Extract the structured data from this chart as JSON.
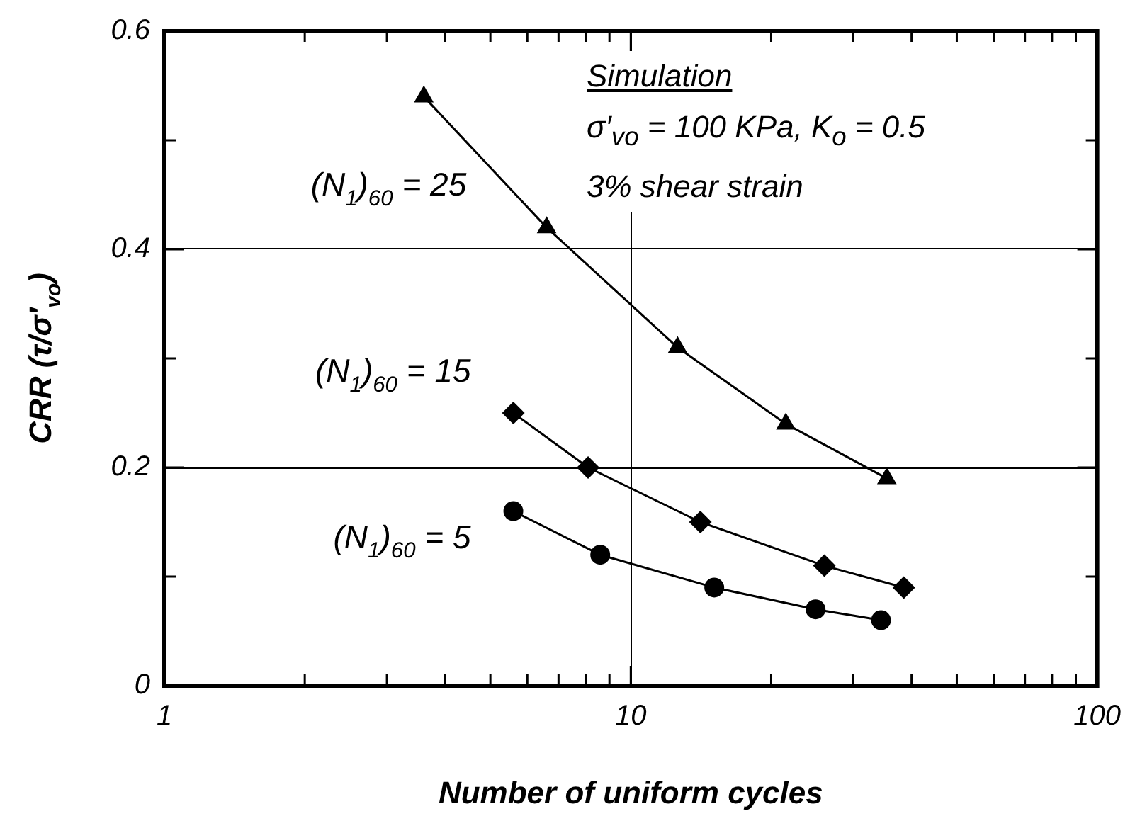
{
  "chart_data": {
    "type": "line",
    "xlabel": "Number of uniform cycles",
    "ylabel": "CRR (τ/σ′$_{vo}$)",
    "log": "x",
    "xlim": [
      1,
      100
    ],
    "ylim": [
      0,
      0.6
    ],
    "xticks": [
      1,
      {
        "value": 2,
        "label": null
      },
      {
        "value": 3,
        "label": null
      },
      {
        "value": 4,
        "label": null
      },
      {
        "value": 5,
        "label": null
      },
      {
        "value": 6,
        "label": null
      },
      {
        "value": 7,
        "label": null
      },
      {
        "value": 8,
        "label": null
      },
      {
        "value": 9,
        "label": null
      },
      10,
      {
        "value": 20,
        "label": null
      },
      {
        "value": 30,
        "label": null
      },
      {
        "value": 40,
        "label": null
      },
      {
        "value": 50,
        "label": null
      },
      {
        "value": 60,
        "label": null
      },
      {
        "value": 70,
        "label": null
      },
      {
        "value": 80,
        "label": null
      },
      {
        "value": 90,
        "label": null
      },
      100
    ],
    "yticks": [
      0,
      {
        "value": 0.1,
        "label": null
      },
      0.2,
      {
        "value": 0.3,
        "label": null
      },
      0.4,
      {
        "value": 0.5,
        "label": null
      },
      0.6
    ],
    "grid": true,
    "legend": false,
    "line_style": "solid",
    "series": [
      {
        "name": "(N$_{1}$)$_{60}$ = 25",
        "color": "#000000",
        "marker": "triangle",
        "x": [
          3.6,
          6.6,
          12.6,
          21.5,
          35.4
        ],
        "values": [
          0.54,
          0.42,
          0.31,
          0.24,
          0.19
        ]
      },
      {
        "name": "(N$_{1}$)$_{60}$ = 15",
        "color": "#000000",
        "marker": "diamond",
        "x": [
          5.6,
          8.1,
          14.1,
          26,
          38.5
        ],
        "values": [
          0.25,
          0.2,
          0.15,
          0.11,
          0.09
        ]
      },
      {
        "name": "(N$_{1}$)$_{60}$ = 5",
        "color": "#000000",
        "marker": "circle",
        "x": [
          5.6,
          8.6,
          15.1,
          24.9,
          34.4
        ],
        "values": [
          0.16,
          0.12,
          0.09,
          0.07,
          0.06
        ]
      }
    ],
    "annotations": [
      "Simulation",
      "σ′$_{vo}$ = 100 KPa, K$_{o}$ = 0.5",
      "3% shear strain"
    ]
  }
}
